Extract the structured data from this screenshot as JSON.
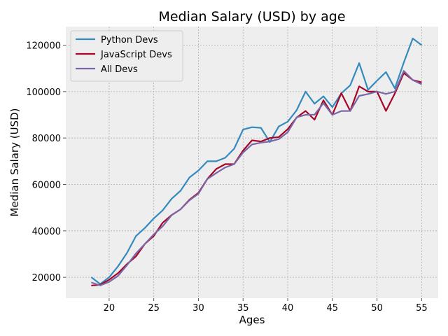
{
  "chart_data": {
    "type": "line",
    "title": "Median Salary (USD) by age",
    "xlabel": "Ages",
    "ylabel": "Median Salary (USD)",
    "xlim": [
      15.15,
      56.85
    ],
    "ylim": [
      11000,
      128000
    ],
    "xticks": [
      20,
      25,
      30,
      35,
      40,
      45,
      50,
      55
    ],
    "yticks": [
      20000,
      40000,
      60000,
      80000,
      100000,
      120000
    ],
    "grid": true,
    "legend": "top-left",
    "x": [
      18,
      19,
      20,
      21,
      22,
      23,
      24,
      25,
      26,
      27,
      28,
      29,
      30,
      31,
      32,
      33,
      34,
      35,
      36,
      37,
      38,
      39,
      40,
      41,
      42,
      43,
      44,
      45,
      46,
      47,
      48,
      49,
      50,
      51,
      52,
      53,
      54,
      55
    ],
    "series": [
      {
        "name": "Python Devs",
        "color": "#348abd",
        "values": [
          20046,
          17100,
          20000,
          24744,
          30500,
          37732,
          41247,
          45372,
          48876,
          53850,
          57287,
          63016,
          65998,
          70003,
          70000,
          71496,
          75370,
          83640,
          84666,
          84392,
          78254,
          85000,
          87038,
          91991,
          100000,
          94796,
          97962,
          93302,
          99240,
          102736,
          112285,
          100771,
          104708,
          108423,
          101407,
          112542,
          122870,
          120000
        ]
      },
      {
        "name": "JavaScript Devs",
        "color": "#a60628",
        "values": [
          16446,
          16791,
          18942,
          21780,
          25704,
          29000,
          34372,
          37810,
          43515,
          46823,
          49293,
          53437,
          56373,
          62375,
          66674,
          68745,
          68746,
          74583,
          79000,
          78508,
          79996,
          80403,
          83820,
          88833,
          91660,
          87892,
          96243,
          90000,
          99313,
          91660,
          102264,
          100000,
          100000,
          91660,
          99240,
          108000,
          105000,
          104000
        ]
      },
      {
        "name": "All Devs",
        "color": "#7a68a6",
        "values": [
          17784,
          16500,
          18012,
          20628,
          25206,
          30252,
          34368,
          38496,
          42000,
          46752,
          49320,
          53200,
          56000,
          62316,
          64928,
          67317,
          68748,
          73752,
          77232,
          78000,
          78508,
          79536,
          82488,
          88935,
          90000,
          90056,
          95000,
          90000,
          91633,
          91660,
          98150,
          98964,
          100000,
          98988,
          100000,
          108923,
          105000,
          103117
        ]
      }
    ]
  }
}
